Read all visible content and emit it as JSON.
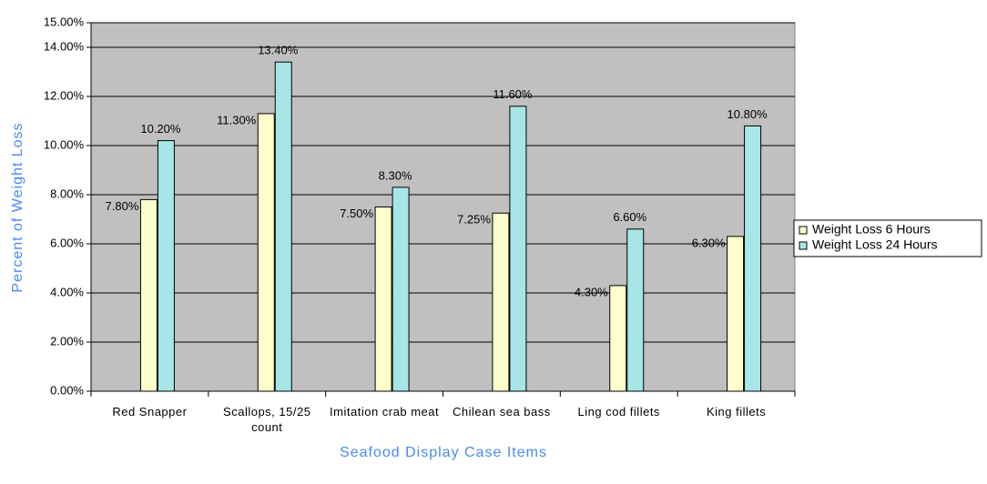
{
  "chart_data": {
    "type": "bar",
    "categories": [
      "Red Snapper",
      "Scallops, 15/25 count",
      "Imitation crab meat",
      "Chilean sea bass",
      "Ling cod fillets",
      "King fillets"
    ],
    "series": [
      {
        "name": "Weight Loss 6 Hours",
        "color": "#ffffcc",
        "values": [
          7.8,
          11.3,
          7.5,
          7.25,
          4.3,
          6.3
        ],
        "value_labels": [
          "7.80%",
          "11.30%",
          "7.50%",
          "7.25%",
          "4.30%",
          "6.30%"
        ]
      },
      {
        "name": "Weight Loss 24 Hours",
        "color": "#a6e6e6",
        "values": [
          10.2,
          13.4,
          8.3,
          11.6,
          6.6,
          10.8
        ],
        "value_labels": [
          "10.20%",
          "13.40%",
          "8.30%",
          "11.60%",
          "6.60%",
          "10.80%"
        ]
      }
    ],
    "xlabel": "Seafood Display Case Items",
    "ylabel": "Percent of Weight Loss",
    "ylim": [
      0,
      15
    ],
    "yticks": [
      {
        "value": 0,
        "label": "0.00%"
      },
      {
        "value": 2,
        "label": "2.00%"
      },
      {
        "value": 4,
        "label": "4.00%"
      },
      {
        "value": 6,
        "label": "6.00%"
      },
      {
        "value": 8,
        "label": "8.00%"
      },
      {
        "value": 10,
        "label": "10.00%"
      },
      {
        "value": 12,
        "label": "12.00%"
      },
      {
        "value": 14,
        "label": "14.00%"
      },
      {
        "value": 15,
        "label": "15.00%"
      }
    ],
    "grid": true,
    "legend": "right"
  }
}
